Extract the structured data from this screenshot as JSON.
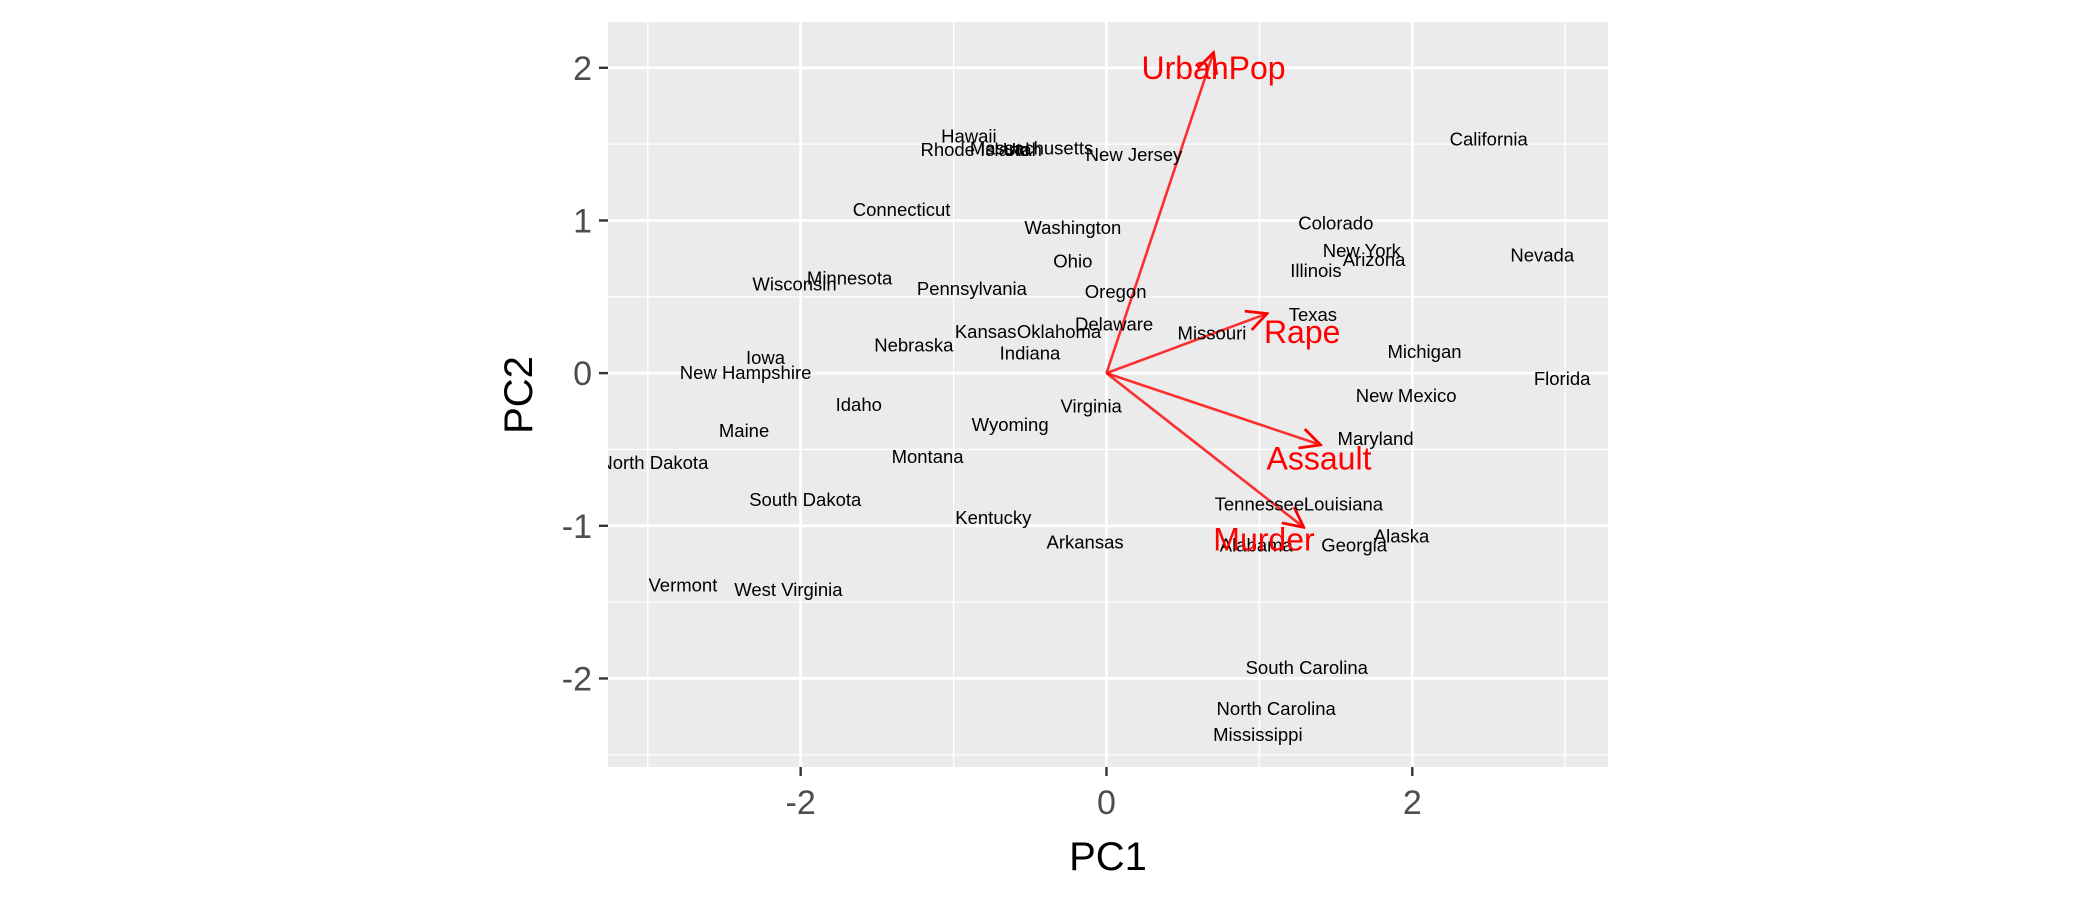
{
  "chart_data": {
    "type": "scatter",
    "title": "",
    "xlabel": "PC1",
    "ylabel": "PC2",
    "xlim": [
      -3.26,
      3.28
    ],
    "ylim": [
      -2.58,
      2.3
    ],
    "xticks": [
      -2,
      0,
      2
    ],
    "yticks": [
      -2,
      -1,
      0,
      1,
      2
    ],
    "grid": true,
    "colors": {
      "panel_background": "#ebebeb",
      "grid": "#ffffff",
      "point_label": "#000000",
      "loading": "#ff0000",
      "axis_text": "#4d4d4d",
      "axis_title": "#000000"
    },
    "points": [
      {
        "label": "Alabama",
        "x": 0.98,
        "y": -1.13
      },
      {
        "label": "Alaska",
        "x": 1.93,
        "y": -1.07
      },
      {
        "label": "Arizona",
        "x": 1.75,
        "y": 0.74
      },
      {
        "label": "Arkansas",
        "x": -0.14,
        "y": -1.11
      },
      {
        "label": "California",
        "x": 2.5,
        "y": 1.53
      },
      {
        "label": "Colorado",
        "x": 1.5,
        "y": 0.98
      },
      {
        "label": "Connecticut",
        "x": -1.34,
        "y": 1.07
      },
      {
        "label": "Delaware",
        "x": 0.05,
        "y": 0.32
      },
      {
        "label": "Florida",
        "x": 2.98,
        "y": -0.04
      },
      {
        "label": "Georgia",
        "x": 1.62,
        "y": -1.13
      },
      {
        "label": "Hawaii",
        "x": -0.9,
        "y": 1.55
      },
      {
        "label": "Idaho",
        "x": -1.62,
        "y": -0.21
      },
      {
        "label": "Illinois",
        "x": 1.37,
        "y": 0.67
      },
      {
        "label": "Indiana",
        "x": -0.5,
        "y": 0.13
      },
      {
        "label": "Iowa",
        "x": -2.23,
        "y": 0.1
      },
      {
        "label": "Kansas",
        "x": -0.79,
        "y": 0.27
      },
      {
        "label": "Kentucky",
        "x": -0.74,
        "y": -0.95
      },
      {
        "label": "Louisiana",
        "x": 1.55,
        "y": -0.86
      },
      {
        "label": "Maine",
        "x": -2.37,
        "y": -0.38
      },
      {
        "label": "Maryland",
        "x": 1.76,
        "y": -0.43
      },
      {
        "label": "Massachusetts",
        "x": -0.49,
        "y": 1.47
      },
      {
        "label": "Michigan",
        "x": 2.08,
        "y": 0.14
      },
      {
        "label": "Minnesota",
        "x": -1.68,
        "y": 0.62
      },
      {
        "label": "Mississippi",
        "x": 0.99,
        "y": -2.37
      },
      {
        "label": "Missouri",
        "x": 0.69,
        "y": 0.26
      },
      {
        "label": "Montana",
        "x": -1.17,
        "y": -0.55
      },
      {
        "label": "Nebraska",
        "x": -1.26,
        "y": 0.18
      },
      {
        "label": "Nevada",
        "x": 2.85,
        "y": 0.77
      },
      {
        "label": "New Hampshire",
        "x": -2.36,
        "y": 0.0
      },
      {
        "label": "New Jersey",
        "x": 0.18,
        "y": 1.43
      },
      {
        "label": "New Mexico",
        "x": 1.96,
        "y": -0.15
      },
      {
        "label": "New York",
        "x": 1.67,
        "y": 0.8
      },
      {
        "label": "North Carolina",
        "x": 1.11,
        "y": -2.2
      },
      {
        "label": "North Dakota",
        "x": -2.96,
        "y": -0.59
      },
      {
        "label": "Ohio",
        "x": -0.22,
        "y": 0.73
      },
      {
        "label": "Oklahoma",
        "x": -0.31,
        "y": 0.27
      },
      {
        "label": "Oregon",
        "x": 0.06,
        "y": 0.53
      },
      {
        "label": "Pennsylvania",
        "x": -0.88,
        "y": 0.55
      },
      {
        "label": "Rhode Island",
        "x": -0.86,
        "y": 1.46
      },
      {
        "label": "South Carolina",
        "x": 1.31,
        "y": -1.93
      },
      {
        "label": "South Dakota",
        "x": -1.97,
        "y": -0.83
      },
      {
        "label": "Tennessee",
        "x": 1.0,
        "y": -0.86
      },
      {
        "label": "Texas",
        "x": 1.35,
        "y": 0.38
      },
      {
        "label": "Utah",
        "x": -0.55,
        "y": 1.46
      },
      {
        "label": "Vermont",
        "x": -2.77,
        "y": -1.39
      },
      {
        "label": "Virginia",
        "x": -0.1,
        "y": -0.22
      },
      {
        "label": "Washington",
        "x": -0.22,
        "y": 0.95
      },
      {
        "label": "West Virginia",
        "x": -2.08,
        "y": -1.42
      },
      {
        "label": "Wisconsin",
        "x": -2.04,
        "y": 0.58
      },
      {
        "label": "Wyoming",
        "x": -0.63,
        "y": -0.34
      }
    ],
    "loadings": [
      {
        "label": "UrbanPop",
        "x": 0.7,
        "y": 2.1,
        "lx": 0.7,
        "ly": 2.0
      },
      {
        "label": "Rape",
        "x": 1.05,
        "y": 0.39,
        "lx": 1.28,
        "ly": 0.27
      },
      {
        "label": "Assault",
        "x": 1.4,
        "y": -0.47,
        "lx": 1.39,
        "ly": -0.56
      },
      {
        "label": "Murder",
        "x": 1.29,
        "y": -1.01,
        "lx": 1.03,
        "ly": -1.09
      }
    ]
  }
}
